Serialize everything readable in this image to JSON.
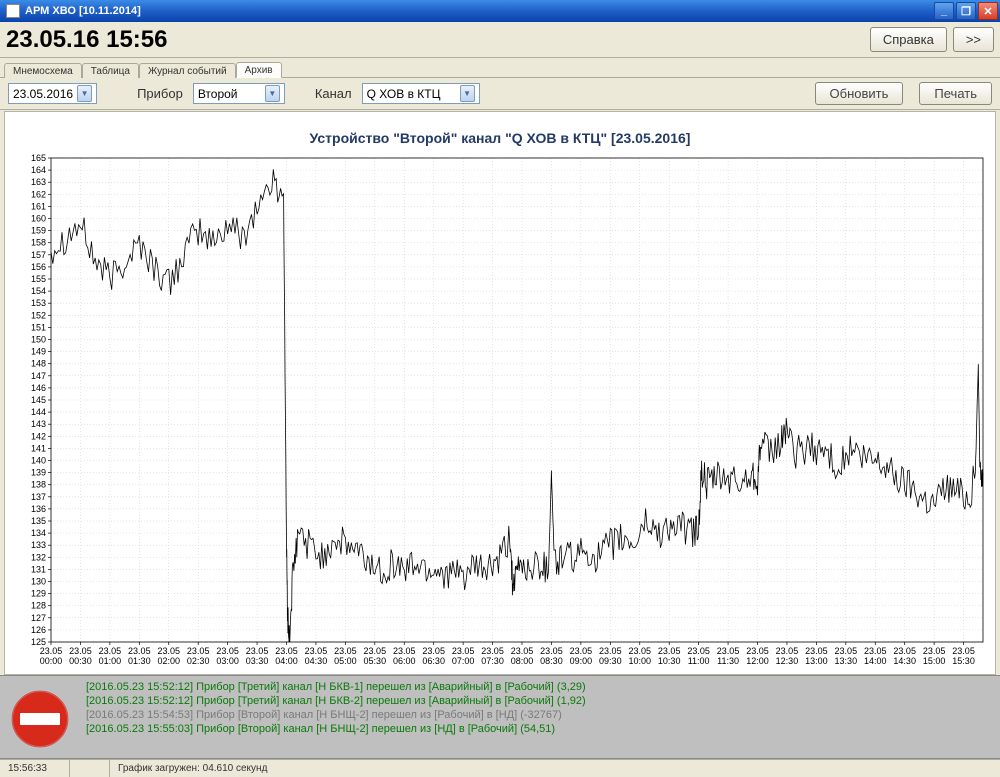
{
  "window": {
    "title": "АРМ ХВО [10.11.2014]"
  },
  "header": {
    "datetime": "23.05.16 15:56",
    "help_label": "Справка",
    "next_label": ">>"
  },
  "tabs": {
    "items": [
      "Мнемосхема",
      "Таблица",
      "Журнал событий",
      "Архив"
    ],
    "active_index": 3
  },
  "toolbar": {
    "date_value": "23.05.2016",
    "device_label": "Прибор",
    "device_value": "Второй",
    "channel_label": "Канал",
    "channel_value": "Q ХОВ в КТЦ",
    "refresh_label": "Обновить",
    "print_label": "Печать"
  },
  "chart": {
    "title": "Устройство \"Второй\" канал \"Q ХОВ в КТЦ\" [23.05.2016]",
    "title_color": "#233a66",
    "title_fontsize": 14,
    "background_color": "#ffffff",
    "grid_color": "#cccccc",
    "axis_color": "#000000",
    "line_color": "#000000",
    "line_width": 0.8,
    "y_min": 125,
    "y_max": 165,
    "y_tick_step": 1,
    "x_labels": [
      "23.05 00:00",
      "23.05 00:30",
      "23.05 01:00",
      "23.05 01:30",
      "23.05 02:00",
      "23.05 02:30",
      "23.05 03:00",
      "23.05 03:30",
      "23.05 04:00",
      "23.05 04:30",
      "23.05 05:00",
      "23.05 05:30",
      "23.05 06:00",
      "23.05 06:30",
      "23.05 07:00",
      "23.05 07:30",
      "23.05 08:00",
      "23.05 08:30",
      "23.05 09:00",
      "23.05 09:30",
      "23.05 10:00",
      "23.05 10:30",
      "23.05 11:00",
      "23.05 11:30",
      "23.05 12:00",
      "23.05 12:30",
      "23.05 13:00",
      "23.05 13:30",
      "23.05 14:00",
      "23.05 14:30",
      "23.05 15:00",
      "23.05 15:30"
    ],
    "x_tick_positions": [
      0,
      0.5,
      1,
      1.5,
      2,
      2.5,
      3,
      3.5,
      4,
      4.5,
      5,
      5.5,
      6,
      6.5,
      7,
      7.5,
      8,
      8.5,
      9,
      9.5,
      10,
      10.5,
      11,
      11.5,
      12,
      12.5,
      13,
      13.5,
      14,
      14.5,
      15,
      15.5
    ],
    "x_min": 0,
    "x_max": 15.83,
    "base_series": [
      [
        0.0,
        157.5
      ],
      [
        0.25,
        158.5
      ],
      [
        0.5,
        159.5
      ],
      [
        0.75,
        156.5
      ],
      [
        1.0,
        155.0
      ],
      [
        1.25,
        156.5
      ],
      [
        1.5,
        158.0
      ],
      [
        1.75,
        156.0
      ],
      [
        2.0,
        154.5
      ],
      [
        2.25,
        157.0
      ],
      [
        2.5,
        159.0
      ],
      [
        2.75,
        158.0
      ],
      [
        3.0,
        159.5
      ],
      [
        3.25,
        158.5
      ],
      [
        3.5,
        161.0
      ],
      [
        3.75,
        163.0
      ],
      [
        3.95,
        162.0
      ],
      [
        4.0,
        133.0
      ],
      [
        4.02,
        127.0
      ],
      [
        4.05,
        125.0
      ],
      [
        4.1,
        130.0
      ],
      [
        4.2,
        134.0
      ],
      [
        4.4,
        133.0
      ],
      [
        4.6,
        132.0
      ],
      [
        4.8,
        133.5
      ],
      [
        5.0,
        133.0
      ],
      [
        5.2,
        132.5
      ],
      [
        5.4,
        131.5
      ],
      [
        5.6,
        131.0
      ],
      [
        5.8,
        131.5
      ],
      [
        6.0,
        131.0
      ],
      [
        6.2,
        131.5
      ],
      [
        6.4,
        131.0
      ],
      [
        6.6,
        131.0
      ],
      [
        6.8,
        130.5
      ],
      [
        7.0,
        130.5
      ],
      [
        7.2,
        131.0
      ],
      [
        7.4,
        131.0
      ],
      [
        7.6,
        131.5
      ],
      [
        7.8,
        133.5
      ],
      [
        7.85,
        129.0
      ],
      [
        7.95,
        131.5
      ],
      [
        8.1,
        131.0
      ],
      [
        8.3,
        131.5
      ],
      [
        8.45,
        131.0
      ],
      [
        8.5,
        139.0
      ],
      [
        8.55,
        131.5
      ],
      [
        8.7,
        132.0
      ],
      [
        8.9,
        132.0
      ],
      [
        9.1,
        132.5
      ],
      [
        9.3,
        132.0
      ],
      [
        9.5,
        133.0
      ],
      [
        9.7,
        133.5
      ],
      [
        9.9,
        133.0
      ],
      [
        10.1,
        135.0
      ],
      [
        10.3,
        134.0
      ],
      [
        10.5,
        134.5
      ],
      [
        10.7,
        134.5
      ],
      [
        10.9,
        134.0
      ],
      [
        11.0,
        134.5
      ],
      [
        11.05,
        139.0
      ],
      [
        11.15,
        138.0
      ],
      [
        11.3,
        138.5
      ],
      [
        11.5,
        138.5
      ],
      [
        11.7,
        138.0
      ],
      [
        11.9,
        139.0
      ],
      [
        12.0,
        138.5
      ],
      [
        12.05,
        141.5
      ],
      [
        12.2,
        140.5
      ],
      [
        12.4,
        141.5
      ],
      [
        12.5,
        143.0
      ],
      [
        12.6,
        140.5
      ],
      [
        12.8,
        141.0
      ],
      [
        13.0,
        141.0
      ],
      [
        13.2,
        140.5
      ],
      [
        13.4,
        139.5
      ],
      [
        13.6,
        141.0
      ],
      [
        13.8,
        140.0
      ],
      [
        14.0,
        140.0
      ],
      [
        14.2,
        139.5
      ],
      [
        14.4,
        138.5
      ],
      [
        14.6,
        138.0
      ],
      [
        14.8,
        137.0
      ],
      [
        15.0,
        136.5
      ],
      [
        15.2,
        138.0
      ],
      [
        15.4,
        137.5
      ],
      [
        15.6,
        137.0
      ],
      [
        15.7,
        139.0
      ],
      [
        15.75,
        148.0
      ],
      [
        15.78,
        138.5
      ],
      [
        15.83,
        139.0
      ]
    ],
    "noise_amplitude": 1.4,
    "noise_points_per_segment": 8,
    "tick_fontsize": 9,
    "tick_color": "#000000"
  },
  "log": {
    "lines": [
      {
        "text": "[2016.05.23 15:52:12] Прибор [Третий] канал [Н БКВ-1] перешел из [Аварийный] в [Рабочий] (3,29)",
        "class": "green"
      },
      {
        "text": "[2016.05.23 15:52:12] Прибор [Третий] канал [Н БКВ-2] перешел из [Аварийный] в [Рабочий] (1,92)",
        "class": "green"
      },
      {
        "text": "[2016.05.23 15:54:53] Прибор [Второй] канал [Н БНЩ-2] перешел из [Рабочий] в [НД] (-32767)",
        "class": "gray"
      },
      {
        "text": "[2016.05.23 15:55:03] Прибор [Второй] канал [Н БНЩ-2] перешел из [НД] в [Рабочий] (54,51)",
        "class": "green"
      }
    ]
  },
  "status": {
    "time": "15:56:33",
    "message": "График загружен: 04.610 секунд"
  },
  "colors": {
    "form_bg": "#ece9d8",
    "titlebar_gradient_top": "#3a8ce6",
    "titlebar_gradient_bottom": "#0843ab"
  }
}
